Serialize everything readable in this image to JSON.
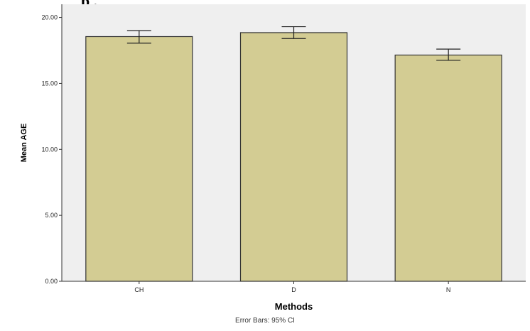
{
  "caption_fragment": "p                                     ,",
  "chart_data": {
    "type": "bar",
    "categories": [
      "CH",
      "D",
      "N"
    ],
    "values": [
      18.55,
      18.85,
      17.15
    ],
    "error_low": [
      18.05,
      18.4,
      16.75
    ],
    "error_high": [
      19.0,
      19.3,
      17.6
    ],
    "xlabel": "Methods",
    "ylabel": "Mean AGE",
    "ylim": [
      0,
      21
    ],
    "yticks": [
      "0.00",
      "5.00",
      "10.00",
      "15.00",
      "20.00"
    ],
    "ytick_values": [
      0,
      5,
      10,
      15,
      20
    ],
    "grid": false,
    "footnote": "Error Bars: 95% CI",
    "colors": {
      "plot_background": "#efefef",
      "bar_fill": "#d3cc93",
      "bar_stroke": "#333333"
    }
  }
}
